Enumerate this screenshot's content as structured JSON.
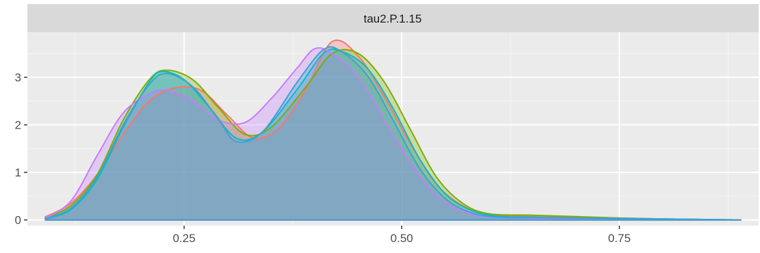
{
  "chart_data": {
    "type": "area",
    "title": "",
    "xlabel": "",
    "ylabel": "",
    "facet_label": "tau2.P.1.15",
    "xlim": [
      0.07,
      0.91
    ],
    "ylim": [
      -0.12,
      3.95
    ],
    "x_ticks": [
      0.25,
      0.5,
      0.75
    ],
    "x_tick_labels": [
      "0.25",
      "0.50",
      "0.75"
    ],
    "y_ticks": [
      0,
      1,
      2,
      3
    ],
    "y_tick_labels": [
      "0",
      "1",
      "2",
      "3"
    ],
    "grid": true,
    "legend": "none",
    "series": [
      {
        "color": "#F8766D",
        "fill": "#F8766D",
        "points": [
          [
            0.09,
            0.06
          ],
          [
            0.12,
            0.35
          ],
          [
            0.15,
            0.95
          ],
          [
            0.18,
            1.8
          ],
          [
            0.21,
            2.5
          ],
          [
            0.24,
            2.78
          ],
          [
            0.27,
            2.72
          ],
          [
            0.3,
            2.2
          ],
          [
            0.33,
            1.72
          ],
          [
            0.36,
            1.95
          ],
          [
            0.39,
            2.75
          ],
          [
            0.42,
            3.75
          ],
          [
            0.45,
            3.45
          ],
          [
            0.48,
            2.6
          ],
          [
            0.51,
            1.6
          ],
          [
            0.54,
            0.75
          ],
          [
            0.57,
            0.3
          ],
          [
            0.6,
            0.12
          ],
          [
            0.65,
            0.07
          ],
          [
            0.7,
            0.05
          ],
          [
            0.75,
            0.04
          ],
          [
            0.8,
            0.02
          ],
          [
            0.89,
            0.0
          ]
        ]
      },
      {
        "color": "#7CAE00",
        "fill": "#7CAE00",
        "points": [
          [
            0.09,
            0.04
          ],
          [
            0.12,
            0.3
          ],
          [
            0.15,
            0.95
          ],
          [
            0.18,
            2.1
          ],
          [
            0.21,
            2.95
          ],
          [
            0.23,
            3.15
          ],
          [
            0.26,
            2.95
          ],
          [
            0.29,
            2.35
          ],
          [
            0.32,
            1.8
          ],
          [
            0.35,
            1.95
          ],
          [
            0.39,
            2.8
          ],
          [
            0.42,
            3.5
          ],
          [
            0.45,
            3.5
          ],
          [
            0.48,
            2.9
          ],
          [
            0.51,
            1.9
          ],
          [
            0.54,
            0.9
          ],
          [
            0.57,
            0.35
          ],
          [
            0.6,
            0.13
          ],
          [
            0.65,
            0.1
          ],
          [
            0.7,
            0.07
          ],
          [
            0.75,
            0.04
          ],
          [
            0.8,
            0.02
          ],
          [
            0.89,
            0.0
          ]
        ]
      },
      {
        "color": "#00BFC4",
        "fill": "#00BFC4",
        "points": [
          [
            0.09,
            0.02
          ],
          [
            0.12,
            0.22
          ],
          [
            0.15,
            0.85
          ],
          [
            0.18,
            1.95
          ],
          [
            0.21,
            2.9
          ],
          [
            0.225,
            3.12
          ],
          [
            0.25,
            2.95
          ],
          [
            0.28,
            2.35
          ],
          [
            0.31,
            1.72
          ],
          [
            0.34,
            1.85
          ],
          [
            0.38,
            2.75
          ],
          [
            0.41,
            3.5
          ],
          [
            0.43,
            3.55
          ],
          [
            0.46,
            3.2
          ],
          [
            0.49,
            2.35
          ],
          [
            0.52,
            1.3
          ],
          [
            0.55,
            0.55
          ],
          [
            0.58,
            0.2
          ],
          [
            0.61,
            0.08
          ],
          [
            0.65,
            0.06
          ],
          [
            0.7,
            0.04
          ],
          [
            0.75,
            0.03
          ],
          [
            0.8,
            0.02
          ],
          [
            0.89,
            0.0
          ]
        ]
      },
      {
        "color": "#C77CFF",
        "fill": "#C77CFF",
        "points": [
          [
            0.09,
            0.03
          ],
          [
            0.12,
            0.4
          ],
          [
            0.15,
            1.35
          ],
          [
            0.18,
            2.25
          ],
          [
            0.21,
            2.65
          ],
          [
            0.23,
            2.72
          ],
          [
            0.26,
            2.5
          ],
          [
            0.29,
            2.1
          ],
          [
            0.32,
            2.05
          ],
          [
            0.35,
            2.55
          ],
          [
            0.38,
            3.2
          ],
          [
            0.4,
            3.6
          ],
          [
            0.42,
            3.5
          ],
          [
            0.45,
            3.0
          ],
          [
            0.48,
            2.1
          ],
          [
            0.51,
            1.2
          ],
          [
            0.54,
            0.5
          ],
          [
            0.57,
            0.18
          ],
          [
            0.6,
            0.06
          ],
          [
            0.65,
            0.04
          ],
          [
            0.7,
            0.03
          ],
          [
            0.75,
            0.02
          ],
          [
            0.8,
            0.01
          ],
          [
            0.89,
            0.0
          ]
        ]
      },
      {
        "color": "#3FA0D6",
        "fill": "#3FA0D6",
        "points": [
          [
            0.09,
            0.02
          ],
          [
            0.12,
            0.25
          ],
          [
            0.15,
            0.9
          ],
          [
            0.18,
            2.0
          ],
          [
            0.21,
            2.85
          ],
          [
            0.23,
            3.08
          ],
          [
            0.26,
            2.8
          ],
          [
            0.29,
            2.1
          ],
          [
            0.31,
            1.65
          ],
          [
            0.34,
            1.85
          ],
          [
            0.38,
            2.9
          ],
          [
            0.41,
            3.58
          ],
          [
            0.43,
            3.55
          ],
          [
            0.46,
            3.05
          ],
          [
            0.49,
            2.1
          ],
          [
            0.52,
            1.1
          ],
          [
            0.55,
            0.45
          ],
          [
            0.58,
            0.15
          ],
          [
            0.61,
            0.06
          ],
          [
            0.65,
            0.05
          ],
          [
            0.7,
            0.04
          ],
          [
            0.75,
            0.03
          ],
          [
            0.8,
            0.02
          ],
          [
            0.89,
            0.0
          ]
        ]
      }
    ]
  }
}
